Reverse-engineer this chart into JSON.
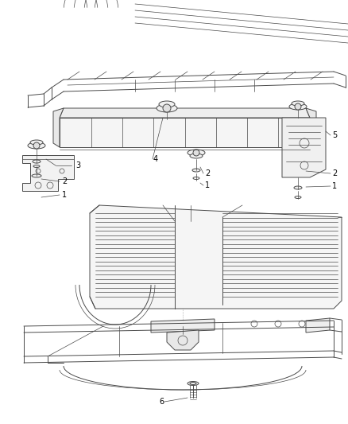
{
  "background_color": "#ffffff",
  "line_color": "#4a4a4a",
  "label_color": "#000000",
  "fig_width": 4.38,
  "fig_height": 5.33,
  "dpi": 100
}
